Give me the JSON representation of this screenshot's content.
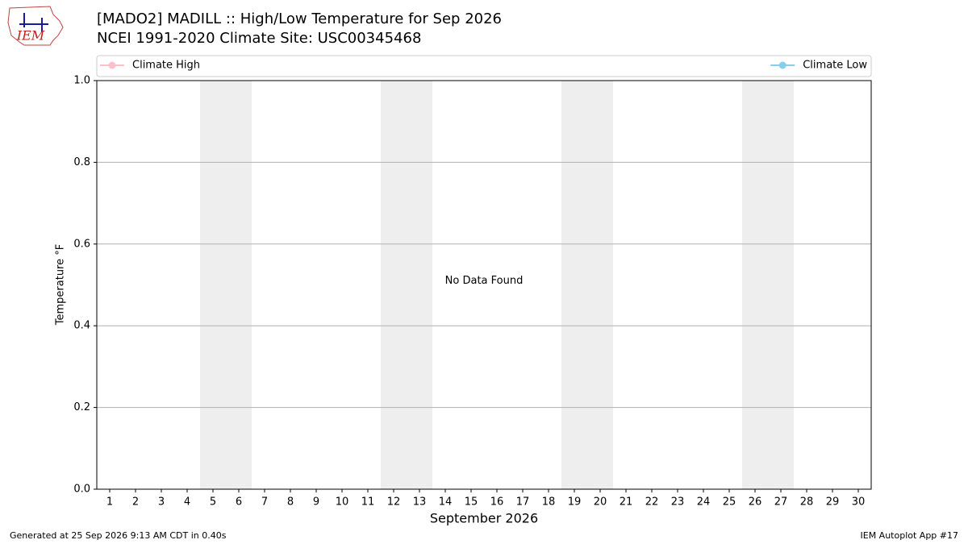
{
  "chart_data": {
    "type": "line",
    "title": "[MADO2] MADILL :: High/Low Temperature for Sep 2026",
    "subtitle": "NCEI 1991-2020 Climate Site: USC00345468",
    "logo_text": "IEM",
    "x": [
      1,
      2,
      3,
      4,
      5,
      6,
      7,
      8,
      9,
      10,
      11,
      12,
      13,
      14,
      15,
      16,
      17,
      18,
      19,
      20,
      21,
      22,
      23,
      24,
      25,
      26,
      27,
      28,
      29,
      30
    ],
    "series": [
      {
        "name": "Climate High",
        "color": "#ffc0cb",
        "values": [
          null,
          null,
          null,
          null,
          null,
          null,
          null,
          null,
          null,
          null,
          null,
          null,
          null,
          null,
          null,
          null,
          null,
          null,
          null,
          null,
          null,
          null,
          null,
          null,
          null,
          null,
          null,
          null,
          null,
          null
        ]
      },
      {
        "name": "Climate Low",
        "color": "#87ceeb",
        "values": [
          null,
          null,
          null,
          null,
          null,
          null,
          null,
          null,
          null,
          null,
          null,
          null,
          null,
          null,
          null,
          null,
          null,
          null,
          null,
          null,
          null,
          null,
          null,
          null,
          null,
          null,
          null,
          null,
          null,
          null
        ]
      }
    ],
    "xlim": [
      0.5,
      30.5
    ],
    "xticks": [
      1,
      2,
      3,
      4,
      5,
      6,
      7,
      8,
      9,
      10,
      11,
      12,
      13,
      14,
      15,
      16,
      17,
      18,
      19,
      20,
      21,
      22,
      23,
      24,
      25,
      26,
      27,
      28,
      29,
      30
    ],
    "x_label": "September 2026",
    "ylim": [
      0,
      1
    ],
    "yticks": [
      {
        "value": 0,
        "label": "0.0"
      },
      0.2,
      0.4,
      0.6,
      0.8,
      {
        "value": 1,
        "label": "1.0"
      }
    ],
    "y_label": "Temperature °F",
    "grid": true,
    "shaded_days": [
      5,
      6,
      12,
      13,
      19,
      20,
      26,
      27
    ],
    "shade_color": "#eeeeee",
    "legend": "top",
    "annotation": "No Data Found",
    "footer_left": "Generated at 25 Sep 2026 9:13 AM CDT in 0.40s",
    "footer_right": "IEM Autoplot App #17"
  }
}
